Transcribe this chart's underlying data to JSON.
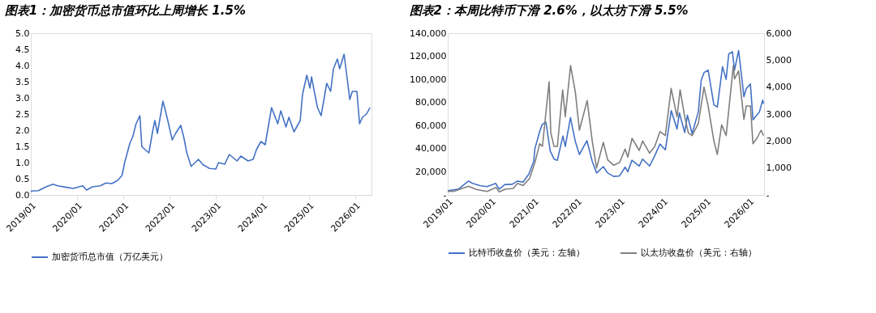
{
  "chart_data": [
    {
      "type": "line",
      "title": "图表1：加密货币总市值环比上周增长 1.5%",
      "legend": "bottom",
      "grid": false,
      "xlim": [
        "2019-01-01",
        "2026-05-10"
      ],
      "xticks": [
        {
          "value": "2019-01-01",
          "label": "2019/01"
        },
        {
          "value": "2020-01-01",
          "label": "2020/01"
        },
        {
          "value": "2021-01-01",
          "label": "2021/01"
        },
        {
          "value": "2022-01-01",
          "label": "2022/01"
        },
        {
          "value": "2023-01-01",
          "label": "2023/01"
        },
        {
          "value": "2024-01-01",
          "label": "2024/01"
        },
        {
          "value": "2025-01-01",
          "label": "2025/01"
        },
        {
          "value": "2026-01-01",
          "label": "2026/01"
        }
      ],
      "ylim": [
        0,
        5
      ],
      "yticks": [
        {
          "value": 0,
          "label": "0.0"
        },
        0.5,
        {
          "value": 1,
          "label": "1.0"
        },
        1.5,
        {
          "value": 2,
          "label": "2.0"
        },
        2.5,
        {
          "value": 3,
          "label": "3.0"
        },
        3.5,
        {
          "value": 4,
          "label": "4.0"
        },
        4.5,
        {
          "value": 5,
          "label": "5.0"
        }
      ],
      "series": [
        {
          "name": "加密货币总市值（万亿美元）",
          "color": "#4472c4",
          "x": [
            "2019-01-01",
            "2019-03-01",
            "2019-05-01",
            "2019-06-25",
            "2019-08-01",
            "2019-10-01",
            "2019-12-01",
            "2020-02-15",
            "2020-03-15",
            "2020-05-01",
            "2020-07-01",
            "2020-08-15",
            "2020-10-01",
            "2020-11-15",
            "2020-12-20",
            "2021-01-10",
            "2021-02-20",
            "2021-03-15",
            "2021-04-10",
            "2021-05-10",
            "2021-05-25",
            "2021-06-20",
            "2021-07-20",
            "2021-08-20",
            "2021-09-05",
            "2021-09-25",
            "2021-11-08",
            "2021-12-10",
            "2022-01-20",
            "2022-02-15",
            "2022-03-28",
            "2022-04-20",
            "2022-05-15",
            "2022-06-18",
            "2022-08-14",
            "2022-09-20",
            "2022-11-10",
            "2022-12-30",
            "2023-01-20",
            "2023-03-10",
            "2023-04-15",
            "2023-06-15",
            "2023-07-15",
            "2023-09-10",
            "2023-10-20",
            "2023-11-15",
            "2023-12-20",
            "2024-01-23",
            "2024-03-13",
            "2024-05-01",
            "2024-05-25",
            "2024-07-05",
            "2024-07-28",
            "2024-09-06",
            "2024-10-25",
            "2024-11-12",
            "2024-12-16",
            "2025-01-10",
            "2025-01-22",
            "2025-03-10",
            "2025-04-08",
            "2025-05-22",
            "2025-06-22",
            "2025-07-14",
            "2025-08-14",
            "2025-09-01",
            "2025-10-06",
            "2025-11-20",
            "2025-12-10",
            "2026-01-15",
            "2026-02-05",
            "2026-02-28",
            "2026-04-01",
            "2026-04-28"
          ],
          "values": [
            0.12,
            0.13,
            0.25,
            0.33,
            0.28,
            0.24,
            0.2,
            0.28,
            0.15,
            0.25,
            0.28,
            0.37,
            0.35,
            0.45,
            0.6,
            1.0,
            1.6,
            1.8,
            2.2,
            2.45,
            1.5,
            1.4,
            1.3,
            2.0,
            2.3,
            1.9,
            2.9,
            2.4,
            1.7,
            1.9,
            2.15,
            1.8,
            1.3,
            0.88,
            1.1,
            0.93,
            0.82,
            0.8,
            1.0,
            0.95,
            1.25,
            1.05,
            1.2,
            1.05,
            1.1,
            1.4,
            1.65,
            1.55,
            2.7,
            2.2,
            2.6,
            2.1,
            2.4,
            1.95,
            2.3,
            3.1,
            3.7,
            3.3,
            3.65,
            2.7,
            2.45,
            3.45,
            3.2,
            3.9,
            4.2,
            3.9,
            4.35,
            2.95,
            3.2,
            3.2,
            2.2,
            2.4,
            2.5,
            2.7
          ]
        }
      ]
    },
    {
      "type": "line",
      "title": "图表2：本周比特币下滑 2.6%，以太坊下滑 5.5%",
      "legend": "bottom",
      "grid": false,
      "xlim": [
        "2019-01-01",
        "2026-05-10"
      ],
      "xticks": [
        {
          "value": "2019-01-01",
          "label": "2019/01"
        },
        {
          "value": "2020-01-01",
          "label": "2020/01"
        },
        {
          "value": "2021-01-01",
          "label": "2021/01"
        },
        {
          "value": "2022-01-01",
          "label": "2022/01"
        },
        {
          "value": "2023-01-01",
          "label": "2023/01"
        },
        {
          "value": "2024-01-01",
          "label": "2024/01"
        },
        {
          "value": "2025-01-01",
          "label": "2025/01"
        },
        {
          "value": "2026-01-01",
          "label": "2026/01"
        }
      ],
      "ylim": [
        0,
        140000
      ],
      "yticks": [
        {
          "value": 0,
          "label": "-"
        },
        {
          "value": 20000,
          "label": "20,000"
        },
        {
          "value": 40000,
          "label": "40,000"
        },
        {
          "value": 60000,
          "label": "60,000"
        },
        {
          "value": 80000,
          "label": "80,000"
        },
        {
          "value": 100000,
          "label": "100,000"
        },
        {
          "value": 120000,
          "label": "120,000"
        },
        {
          "value": 140000,
          "label": "140,000"
        }
      ],
      "y2lim": [
        0,
        6000
      ],
      "y2ticks": [
        {
          "value": 0,
          "label": "-"
        },
        {
          "value": 1000,
          "label": "1,000"
        },
        {
          "value": 2000,
          "label": "2,000"
        },
        {
          "value": 3000,
          "label": "3,000"
        },
        {
          "value": 4000,
          "label": "4,000"
        },
        {
          "value": 5000,
          "label": "5,000"
        },
        {
          "value": 6000,
          "label": "6,000"
        }
      ],
      "series": [
        {
          "name": "比特币收盘价（美元：左轴）",
          "color": "#4472c4",
          "x": [
            "2019-01-01",
            "2019-04-01",
            "2019-06-26",
            "2019-08-01",
            "2019-10-01",
            "2019-12-01",
            "2020-02-12",
            "2020-03-13",
            "2020-05-01",
            "2020-07-01",
            "2020-08-15",
            "2020-10-01",
            "2020-11-20",
            "2020-12-31",
            "2021-01-10",
            "2021-02-20",
            "2021-03-13",
            "2021-04-14",
            "2021-05-20",
            "2021-06-22",
            "2021-07-20",
            "2021-09-05",
            "2021-09-25",
            "2021-11-08",
            "2021-12-20",
            "2022-01-23",
            "2022-03-28",
            "2022-05-12",
            "2022-06-18",
            "2022-08-14",
            "2022-09-20",
            "2022-11-10",
            "2022-12-30",
            "2023-02-15",
            "2023-03-10",
            "2023-04-14",
            "2023-06-15",
            "2023-07-14",
            "2023-09-11",
            "2023-10-25",
            "2023-12-08",
            "2024-01-23",
            "2024-03-13",
            "2024-05-01",
            "2024-05-21",
            "2024-07-05",
            "2024-07-28",
            "2024-09-06",
            "2024-10-29",
            "2024-11-22",
            "2024-12-17",
            "2025-01-20",
            "2025-03-10",
            "2025-04-08",
            "2025-05-22",
            "2025-06-22",
            "2025-07-14",
            "2025-08-14",
            "2025-09-01",
            "2025-10-06",
            "2025-11-20",
            "2025-12-10",
            "2026-01-14",
            "2026-02-05",
            "2026-03-01",
            "2026-04-01",
            "2026-04-28",
            "2026-05-05"
          ],
          "values": [
            3700,
            5000,
            12000,
            10000,
            8000,
            7200,
            10000,
            5000,
            9000,
            9200,
            12000,
            11000,
            18000,
            29000,
            40000,
            55000,
            61000,
            63000,
            38000,
            31000,
            30000,
            51000,
            42000,
            67000,
            46000,
            35000,
            47000,
            29000,
            19000,
            24500,
            19000,
            16000,
            16500,
            24000,
            20000,
            30000,
            25000,
            31000,
            25000,
            34000,
            44000,
            39000,
            73000,
            57000,
            71000,
            54000,
            69000,
            53000,
            72000,
            99000,
            106000,
            108000,
            78000,
            76000,
            111000,
            100000,
            122000,
            124000,
            108000,
            125000,
            85000,
            92000,
            96000,
            65000,
            68000,
            72000,
            82000,
            79000
          ]
        },
        {
          "name": "以太坊收盘价（美元：右轴）",
          "color": "#7f7f7f",
          "axis": "y2",
          "x": [
            "2019-01-01",
            "2019-03-01",
            "2019-06-26",
            "2019-09-01",
            "2019-12-01",
            "2020-02-15",
            "2020-03-13",
            "2020-05-01",
            "2020-07-10",
            "2020-08-15",
            "2020-10-01",
            "2020-11-25",
            "2021-01-10",
            "2021-02-20",
            "2021-03-15",
            "2021-05-11",
            "2021-05-25",
            "2021-06-22",
            "2021-07-20",
            "2021-09-03",
            "2021-09-25",
            "2021-11-09",
            "2021-12-20",
            "2022-01-23",
            "2022-03-30",
            "2022-05-12",
            "2022-06-18",
            "2022-08-14",
            "2022-09-20",
            "2022-11-10",
            "2022-12-30",
            "2023-02-15",
            "2023-03-10",
            "2023-04-15",
            "2023-06-15",
            "2023-07-14",
            "2023-09-11",
            "2023-10-25",
            "2023-12-08",
            "2024-01-23",
            "2024-03-12",
            "2024-05-01",
            "2024-05-27",
            "2024-07-05",
            "2024-08-05",
            "2024-09-06",
            "2024-10-29",
            "2024-12-16",
            "2025-01-20",
            "2025-03-10",
            "2025-04-08",
            "2025-05-15",
            "2025-06-22",
            "2025-08-22",
            "2025-09-01",
            "2025-10-06",
            "2025-11-20",
            "2025-12-10",
            "2026-01-14",
            "2026-02-05",
            "2026-03-10",
            "2026-04-15",
            "2026-05-05"
          ],
          "values": [
            130,
            140,
            320,
            200,
            130,
            280,
            110,
            210,
            240,
            430,
            350,
            600,
            1200,
            1900,
            1800,
            4200,
            2300,
            1800,
            1800,
            3900,
            2900,
            4800,
            3800,
            2400,
            3500,
            2000,
            1000,
            1950,
            1300,
            1100,
            1200,
            1700,
            1400,
            2100,
            1650,
            2000,
            1550,
            1800,
            2350,
            2200,
            3950,
            2900,
            3900,
            2900,
            2300,
            2200,
            2650,
            4000,
            3300,
            2000,
            1500,
            2600,
            2200,
            4800,
            4300,
            4600,
            2800,
            3300,
            3300,
            1900,
            2100,
            2400,
            2200
          ]
        }
      ]
    }
  ]
}
